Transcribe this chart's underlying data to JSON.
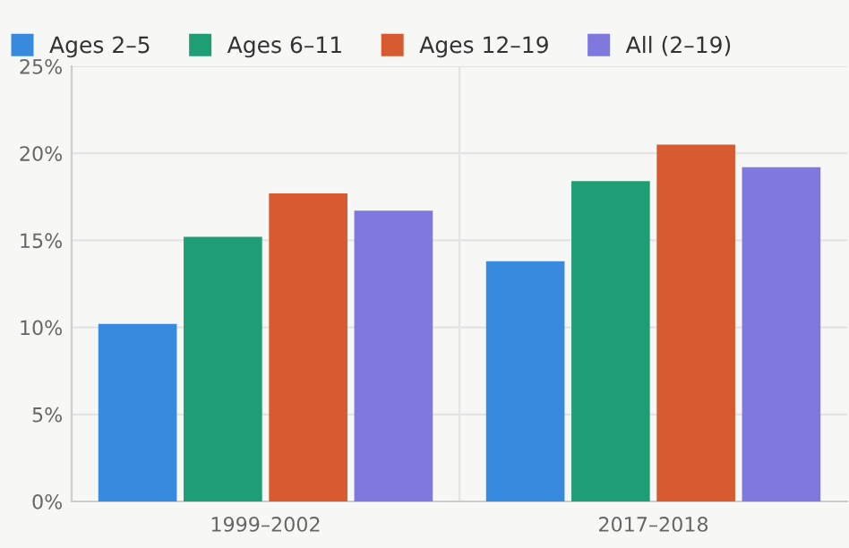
{
  "chart_data": {
    "type": "bar",
    "categories": [
      "1999–2002",
      "2017–2018"
    ],
    "series": [
      {
        "name": "Ages 2–5",
        "color": "#388ade",
        "values": [
          10.2,
          13.8
        ]
      },
      {
        "name": "Ages 6–11",
        "color": "#1f9e76",
        "values": [
          15.2,
          18.4
        ]
      },
      {
        "name": "Ages 12–19",
        "color": "#d85a30",
        "values": [
          17.7,
          20.5
        ]
      },
      {
        "name": "All (2–19)",
        "color": "#7f78de",
        "values": [
          16.7,
          19.2
        ]
      }
    ],
    "ylim": [
      0,
      25
    ],
    "yticks": [
      {
        "value": 0,
        "label": "0%"
      },
      {
        "value": 5,
        "label": "5%"
      },
      {
        "value": 10,
        "label": "10%"
      },
      {
        "value": 15,
        "label": "15%"
      },
      {
        "value": 20,
        "label": "20%"
      },
      {
        "value": 25,
        "label": "25%"
      }
    ],
    "grid": true,
    "legend": "top left"
  }
}
